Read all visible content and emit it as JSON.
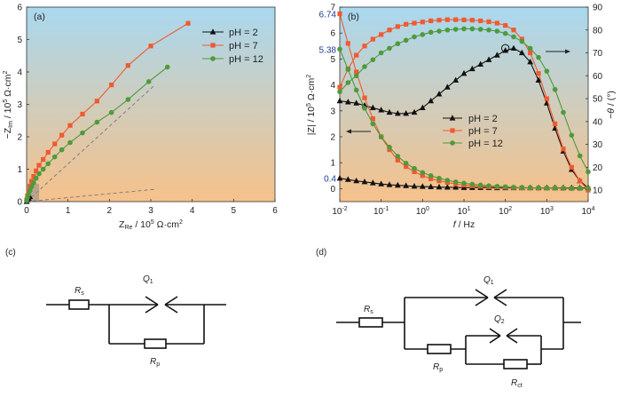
{
  "panels": {
    "a": {
      "label": "(a)"
    },
    "b": {
      "label": "(b)"
    },
    "c": {
      "label": "(c)"
    },
    "d": {
      "label": "(d)"
    }
  },
  "colors": {
    "ph2": "#111111",
    "ph7": "#f05a30",
    "ph12": "#4e9a3c",
    "bg_top": "#a9d8ef",
    "bg_bottom": "#f6c18a"
  },
  "chart_data": [
    {
      "type": "scatter",
      "panel": "a",
      "xlabel": "Z_Re / 10^5 Ω·cm²",
      "ylabel": "−Z_Im / 10^5 Ω·cm²",
      "xlim": [
        0,
        6
      ],
      "ylim": [
        0,
        6
      ],
      "xticks": [
        "0",
        "1",
        "2",
        "3",
        "4",
        "5",
        "6"
      ],
      "yticks": [
        "0",
        "1",
        "2",
        "3",
        "4",
        "5",
        "6"
      ],
      "legend_position": "top-right",
      "series": [
        {
          "name": "pH = 2",
          "marker": "triangle",
          "x": [
            0.0,
            0.02,
            0.05,
            0.08
          ],
          "y": [
            0.0,
            0.05,
            0.1,
            0.15
          ]
        },
        {
          "name": "pH = 7",
          "marker": "square",
          "x": [
            0.0,
            0.02,
            0.05,
            0.08,
            0.12,
            0.17,
            0.23,
            0.3,
            0.4,
            0.52,
            0.68,
            0.85,
            1.05,
            1.35,
            1.7,
            2.05,
            2.45,
            3.0,
            3.9
          ],
          "y": [
            0.05,
            0.18,
            0.33,
            0.48,
            0.63,
            0.78,
            0.95,
            1.12,
            1.3,
            1.52,
            1.78,
            2.05,
            2.35,
            2.7,
            3.1,
            3.6,
            4.2,
            4.8,
            5.5
          ]
        },
        {
          "name": "pH = 12",
          "marker": "circle",
          "x": [
            0.0,
            0.02,
            0.05,
            0.08,
            0.12,
            0.17,
            0.23,
            0.3,
            0.4,
            0.52,
            0.68,
            0.85,
            1.05,
            1.35,
            1.7,
            2.05,
            2.45,
            2.95,
            3.4
          ],
          "y": [
            0.03,
            0.12,
            0.22,
            0.34,
            0.46,
            0.58,
            0.72,
            0.86,
            1.0,
            1.17,
            1.38,
            1.6,
            1.82,
            2.12,
            2.45,
            2.75,
            3.15,
            3.7,
            4.15
          ]
        }
      ],
      "guide_lines": [
        {
          "x": [
            0.0,
            3.1
          ],
          "y": [
            0.0,
            3.6
          ]
        },
        {
          "x": [
            0.0,
            3.1
          ],
          "y": [
            0.0,
            0.38
          ]
        }
      ]
    },
    {
      "type": "line",
      "panel": "b",
      "xlabel": "f / Hz",
      "ylabel_left": "|Z| / 10^5 Ω·cm²",
      "ylabel_right": "−θ / (°)",
      "x_scale": "log",
      "xlim": [
        0.01,
        10000
      ],
      "xticks": [
        "10^-2",
        "10^-1",
        "10^0",
        "10^1",
        "10^2",
        "10^3",
        "10^4"
      ],
      "ylim_left": [
        -0.5,
        7.0
      ],
      "yticks_left": [
        "0",
        "1",
        "2",
        "3",
        "4",
        "5",
        "6",
        "7"
      ],
      "ylim_right": [
        5,
        90
      ],
      "yticks_right": [
        "10",
        "20",
        "30",
        "40",
        "50",
        "60",
        "70",
        "80",
        "90"
      ],
      "annotations_left": [
        {
          "text": "6.74",
          "value": 6.74
        },
        {
          "text": "5.38",
          "value": 5.38
        },
        {
          "text": "0.4",
          "value": 0.4
        }
      ],
      "legend_position": "center-right",
      "log10_f": [
        -2.0,
        -1.8,
        -1.6,
        -1.4,
        -1.2,
        -1.0,
        -0.8,
        -0.6,
        -0.4,
        -0.2,
        0.0,
        0.2,
        0.4,
        0.6,
        0.8,
        1.0,
        1.2,
        1.4,
        1.6,
        1.8,
        2.0,
        2.2,
        2.4,
        2.6,
        2.8,
        3.0,
        3.2,
        3.4,
        3.6,
        3.8,
        4.0
      ],
      "series": [
        {
          "name": "pH = 2",
          "marker": "triangle",
          "axis": "left",
          "role": "|Z|",
          "values": [
            0.4,
            0.35,
            0.3,
            0.26,
            0.22,
            0.18,
            0.15,
            0.13,
            0.11,
            0.09,
            0.08,
            0.07,
            0.06,
            0.05,
            0.05,
            0.04,
            0.04,
            0.04,
            0.04,
            0.03,
            0.03,
            0.03,
            0.03,
            0.03,
            0.03,
            0.03,
            0.03,
            0.03,
            0.03,
            0.03,
            0.03
          ]
        },
        {
          "name": "pH = 2",
          "marker": "triangle",
          "axis": "right",
          "role": "-θ",
          "values": [
            49,
            48.5,
            48,
            47,
            46,
            45,
            44,
            43.5,
            43.5,
            44,
            46,
            49,
            52,
            55,
            58,
            61,
            63,
            65,
            67,
            69,
            71,
            72,
            70,
            66,
            58,
            48,
            37,
            27,
            19,
            14,
            11
          ]
        },
        {
          "name": "pH = 7",
          "marker": "square",
          "axis": "left",
          "role": "|Z|",
          "values": [
            6.74,
            5.6,
            4.5,
            3.5,
            2.7,
            2.0,
            1.5,
            1.1,
            0.85,
            0.65,
            0.5,
            0.38,
            0.3,
            0.24,
            0.18,
            0.14,
            0.11,
            0.09,
            0.07,
            0.06,
            0.05,
            0.04,
            0.03,
            0.03,
            0.02,
            0.02,
            0.02,
            0.01,
            0.01,
            0.01,
            0.01
          ]
        },
        {
          "name": "pH = 7",
          "marker": "square",
          "axis": "right",
          "role": "-θ",
          "values": [
            55,
            63,
            69,
            73,
            76,
            78,
            80,
            81.5,
            82.5,
            83,
            83.5,
            84,
            84.3,
            84.5,
            84.5,
            84.4,
            84.3,
            84,
            83.6,
            83,
            82,
            80,
            76,
            70,
            61,
            50,
            39,
            28,
            20,
            14,
            10
          ]
        },
        {
          "name": "pH = 12",
          "marker": "circle",
          "axis": "left",
          "role": "|Z|",
          "values": [
            5.38,
            4.6,
            3.8,
            3.1,
            2.5,
            2.0,
            1.6,
            1.25,
            0.98,
            0.78,
            0.62,
            0.5,
            0.4,
            0.32,
            0.26,
            0.21,
            0.17,
            0.14,
            0.11,
            0.09,
            0.07,
            0.05,
            0.04,
            0.03,
            0.03,
            0.02,
            0.02,
            0.02,
            0.01,
            0.01,
            0.01
          ]
        },
        {
          "name": "pH = 12",
          "marker": "circle",
          "axis": "right",
          "role": "-θ",
          "values": [
            53,
            57,
            60,
            64,
            67,
            70,
            72,
            74,
            75.5,
            77,
            78,
            79,
            79.5,
            80,
            80.3,
            80.5,
            80.5,
            80.3,
            80,
            79.5,
            78.5,
            77,
            75,
            72,
            68,
            62,
            54,
            44,
            34,
            25,
            18
          ]
        }
      ]
    }
  ],
  "circuits": {
    "c": {
      "Rs": "R",
      "Rs_sub": "s",
      "Q": "Q",
      "Q_sub": "1",
      "Rp": "R",
      "Rp_sub": "p"
    },
    "d": {
      "Rs": "R",
      "Rs_sub": "s",
      "Q1": "Q",
      "Q1_sub": "1",
      "Q2": "Q",
      "Q2_sub": "2",
      "Rp": "R",
      "Rp_sub": "p",
      "Rct": "R",
      "Rct_sub": "ct"
    }
  }
}
